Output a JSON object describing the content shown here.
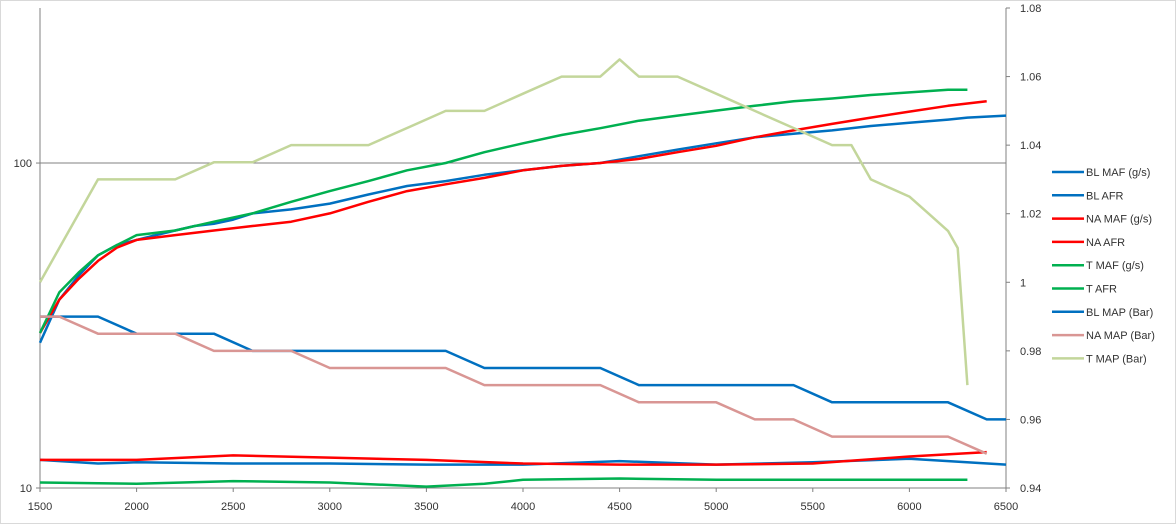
{
  "chart_data": {
    "type": "line",
    "title": "",
    "xlabel": "",
    "ylabel": "",
    "y2label": "",
    "xlim": [
      1500,
      6500
    ],
    "ylim": [
      10,
      300
    ],
    "ylog": true,
    "y2lim": [
      0.94,
      1.08
    ],
    "grid": "major horizontal line at 100",
    "legend_position": "right",
    "x_ticks": [
      "1500",
      "2000",
      "2500",
      "3000",
      "3500",
      "4000",
      "4500",
      "5000",
      "5500",
      "6000",
      "6500"
    ],
    "y_ticks": [
      "10",
      "100"
    ],
    "y2_ticks": [
      "0.94",
      "0.96",
      "0.98",
      "1",
      "1.02",
      "1.04",
      "1.06",
      "1.08"
    ],
    "series": [
      {
        "name": "BL MAF (g/s)",
        "axis": "left",
        "color": "#0070C0",
        "x": [
          1500,
          1600,
          1700,
          1800,
          1900,
          2000,
          2100,
          2200,
          2300,
          2400,
          2500,
          2600,
          2800,
          3000,
          3200,
          3400,
          3600,
          3800,
          4000,
          4200,
          4400,
          4600,
          4800,
          5000,
          5200,
          5400,
          5600,
          5800,
          6000,
          6200,
          6300,
          6400,
          6500
        ],
        "y": [
          28,
          38,
          45,
          52,
          56,
          58,
          60,
          62,
          64,
          65,
          67,
          70,
          72,
          75,
          80,
          85,
          88,
          92,
          95,
          98,
          100,
          105,
          110,
          115,
          120,
          123,
          126,
          130,
          133,
          136,
          138,
          139,
          140
        ]
      },
      {
        "name": "BL AFR",
        "axis": "left",
        "color": "#0070C0",
        "x": [
          1500,
          1800,
          2000,
          2500,
          3000,
          3500,
          4000,
          4500,
          5000,
          5500,
          6000,
          6500
        ],
        "y": [
          12.2,
          11.9,
          12.0,
          11.9,
          11.9,
          11.8,
          11.8,
          12.1,
          11.8,
          12.0,
          12.3,
          11.8
        ]
      },
      {
        "name": "NA MAF (g/s)",
        "axis": "left",
        "color": "#FF0000",
        "x": [
          1500,
          1600,
          1700,
          1800,
          1900,
          2000,
          2200,
          2400,
          2600,
          2800,
          3000,
          3200,
          3400,
          3600,
          3800,
          4000,
          4200,
          4400,
          4600,
          4800,
          5000,
          5200,
          5400,
          5600,
          5800,
          6000,
          6200,
          6400
        ],
        "y": [
          30,
          38,
          44,
          50,
          55,
          58,
          60,
          62,
          64,
          66,
          70,
          76,
          82,
          86,
          90,
          95,
          98,
          100,
          103,
          108,
          113,
          120,
          126,
          132,
          138,
          144,
          150,
          155
        ]
      },
      {
        "name": "NA AFR",
        "axis": "left",
        "color": "#FF0000",
        "x": [
          1500,
          2000,
          2500,
          3000,
          3500,
          4000,
          4500,
          5000,
          5500,
          6000,
          6400
        ],
        "y": [
          12.2,
          12.2,
          12.6,
          12.4,
          12.2,
          11.9,
          11.8,
          11.8,
          11.9,
          12.5,
          12.9
        ]
      },
      {
        "name": "T MAF (g/s)",
        "axis": "left",
        "color": "#00B050",
        "x": [
          1500,
          1600,
          1700,
          1800,
          1900,
          2000,
          2200,
          2400,
          2600,
          2800,
          3000,
          3200,
          3400,
          3600,
          3800,
          4000,
          4200,
          4400,
          4600,
          4800,
          5000,
          5200,
          5400,
          5600,
          5800,
          6000,
          6200,
          6300
        ],
        "y": [
          30,
          40,
          46,
          52,
          56,
          60,
          62,
          66,
          70,
          76,
          82,
          88,
          95,
          100,
          108,
          115,
          122,
          128,
          135,
          140,
          145,
          150,
          155,
          158,
          162,
          165,
          168,
          168
        ]
      },
      {
        "name": "T AFR",
        "axis": "left",
        "color": "#00B050",
        "x": [
          1500,
          2000,
          2500,
          3000,
          3500,
          3800,
          4000,
          4500,
          5000,
          5500,
          6000,
          6300
        ],
        "y": [
          10.4,
          10.3,
          10.5,
          10.4,
          10.1,
          10.3,
          10.6,
          10.7,
          10.6,
          10.6,
          10.6,
          10.6
        ]
      },
      {
        "name": "BL MAP (Bar)",
        "axis": "right",
        "color": "#0070C0",
        "x": [
          1500,
          1600,
          1800,
          2000,
          2200,
          2400,
          2600,
          2800,
          3000,
          3200,
          3400,
          3600,
          3800,
          4000,
          4200,
          4400,
          4600,
          4800,
          5000,
          5200,
          5400,
          5600,
          5800,
          6000,
          6200,
          6400,
          6500
        ],
        "y": [
          0.99,
          0.99,
          0.99,
          0.985,
          0.985,
          0.985,
          0.98,
          0.98,
          0.98,
          0.98,
          0.98,
          0.98,
          0.975,
          0.975,
          0.975,
          0.975,
          0.97,
          0.97,
          0.97,
          0.97,
          0.97,
          0.965,
          0.965,
          0.965,
          0.965,
          0.96,
          0.96
        ]
      },
      {
        "name": "NA MAP (Bar)",
        "axis": "right",
        "color": "#D99694",
        "x": [
          1500,
          1600,
          1800,
          2000,
          2200,
          2400,
          2600,
          2800,
          3000,
          3200,
          3400,
          3600,
          3800,
          4000,
          4200,
          4400,
          4600,
          4800,
          5000,
          5200,
          5400,
          5600,
          5800,
          6000,
          6200,
          6400
        ],
        "y": [
          0.99,
          0.99,
          0.985,
          0.985,
          0.985,
          0.98,
          0.98,
          0.98,
          0.975,
          0.975,
          0.975,
          0.975,
          0.97,
          0.97,
          0.97,
          0.97,
          0.965,
          0.965,
          0.965,
          0.96,
          0.96,
          0.955,
          0.955,
          0.955,
          0.955,
          0.95
        ]
      },
      {
        "name": "T MAP (Bar)",
        "axis": "right",
        "color": "#C3D69B",
        "x": [
          1500,
          1600,
          1700,
          1800,
          2000,
          2200,
          2400,
          2600,
          2800,
          3000,
          3200,
          3400,
          3600,
          3800,
          4000,
          4200,
          4400,
          4500,
          4600,
          4800,
          5000,
          5200,
          5400,
          5600,
          5700,
          5800,
          6000,
          6100,
          6200,
          6250,
          6300
        ],
        "y": [
          1.0,
          1.01,
          1.02,
          1.03,
          1.03,
          1.03,
          1.035,
          1.035,
          1.04,
          1.04,
          1.04,
          1.045,
          1.05,
          1.05,
          1.055,
          1.06,
          1.06,
          1.065,
          1.06,
          1.06,
          1.055,
          1.05,
          1.045,
          1.04,
          1.04,
          1.03,
          1.025,
          1.02,
          1.015,
          1.01,
          0.97
        ]
      }
    ]
  }
}
